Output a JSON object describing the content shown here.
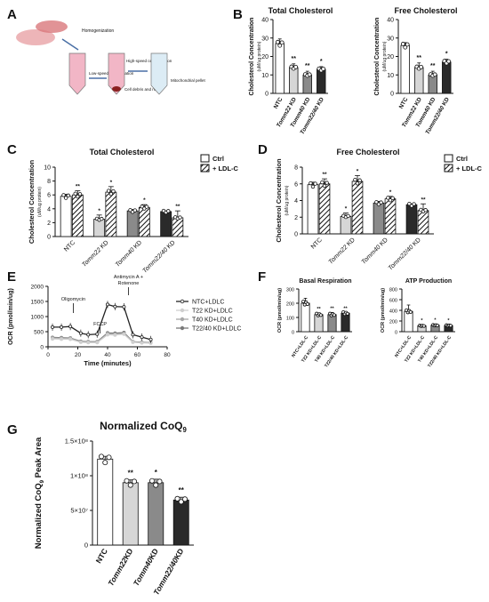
{
  "panels": {
    "A": "A",
    "B": "B",
    "C": "C",
    "D": "D",
    "E": "E",
    "F": "F",
    "G": "G"
  },
  "schematic": {
    "homogenization": "Homogenization",
    "low_speed": "Low-speed centrifugation",
    "high_speed": "High-speed centrifugation",
    "debris": "Cell debris and nuclei",
    "mito": "Mitochondrial pellet"
  },
  "groups_kd": [
    "NTC",
    "Tomm22 KD",
    "Tomm40 KD",
    "Tomm22/40 KD"
  ],
  "groups_g": [
    "NTC",
    "Tomm22KD",
    "Tomm40KD",
    "Tomm22/40KD"
  ],
  "groups_f": [
    "NTC+LDL-C",
    "T22 KD+LDL-C",
    "T40 KD+LDL-C",
    "T22/40 KD+LDL-C"
  ],
  "legend_ldl": {
    "ctrl": "Ctrl",
    "ldl": "+ LDL-C"
  },
  "legend_e": [
    "NTC+LDLC",
    "T22 KD+LDLC",
    "T40 KD+LDLC",
    "T22/40 KD+LDLC"
  ],
  "annotations_e": {
    "oligo": "Oligomycin",
    "fccp": "FCCP",
    "aa1": "Antimycin A +",
    "aa2": "Rotenone"
  },
  "colors": {
    "ntc": "#ffffff",
    "t22": "#d6d6d6",
    "t40": "#8a8a8a",
    "t2240": "#2a2a2a",
    "line_ntc": "#222222",
    "line_t22": "#cfcfcf",
    "line_t40": "#a8a8a8",
    "line_t2240": "#7a7a7a"
  },
  "chart_data": [
    {
      "panel": "B-left",
      "type": "bar",
      "title": "Total Cholesterol",
      "ylabel": "Cholesterol Concentration",
      "yunit": "(uM/ug protein)",
      "categories": [
        "NTC",
        "Tomm22 KD",
        "Tomm40 KD",
        "Tomm22/40 KD"
      ],
      "values": [
        27,
        14,
        10,
        13
      ],
      "errors": [
        2.5,
        2,
        2,
        1.5
      ],
      "significance": [
        "",
        "**",
        "**",
        "*"
      ],
      "ylim": [
        0,
        40
      ],
      "yticks": [
        0,
        10,
        20,
        30,
        40
      ]
    },
    {
      "panel": "B-right",
      "type": "bar",
      "title": "Free Cholesterol",
      "ylabel": "Cholesterol Concentration",
      "yunit": "(uM/ug protein)",
      "categories": [
        "NTC",
        "Tomm22 KD",
        "Tomm40 KD",
        "Tomm22/40 KD"
      ],
      "values": [
        26,
        14,
        10,
        17
      ],
      "errors": [
        1.5,
        2.5,
        2,
        1.5
      ],
      "significance": [
        "",
        "**",
        "**",
        "*"
      ],
      "ylim": [
        0,
        40
      ],
      "yticks": [
        0,
        10,
        20,
        30,
        40
      ]
    },
    {
      "panel": "C",
      "type": "bar",
      "title": "Total Cholesterol",
      "ylabel": "Cholesterol Concentration",
      "yunit": "(uM/ug protein)",
      "categories": [
        "NTC",
        "Tomm22 KD",
        "Tomm40 KD",
        "Tomm22/40 KD"
      ],
      "series": [
        {
          "name": "Ctrl",
          "values": [
            5.8,
            2.5,
            3.7,
            3.6
          ],
          "errors": [
            0.3,
            0.6,
            0.2,
            0.1
          ]
        },
        {
          "name": "+ LDL-C",
          "values": [
            6,
            6.4,
            4.2,
            2.7
          ],
          "errors": [
            0.6,
            0.8,
            0.4,
            1.0
          ]
        }
      ],
      "significance": [
        "",
        "**",
        "*",
        "*",
        "",
        "*",
        "",
        "**"
      ],
      "ylim": [
        0,
        10
      ],
      "yticks": [
        0,
        2,
        4,
        6,
        8,
        10
      ]
    },
    {
      "panel": "D",
      "type": "bar",
      "title": "Free Cholesterol",
      "ylabel": "Cholesterol Concentration",
      "yunit": "(uM/ug protein)",
      "categories": [
        "NTC",
        "Tomm22 KD",
        "Tomm40 KD",
        "Tomm22/40 KD"
      ],
      "series": [
        {
          "name": "Ctrl",
          "values": [
            5.9,
            2.1,
            3.7,
            3.5
          ],
          "errors": [
            0.3,
            0.4,
            0.2,
            0.1
          ]
        },
        {
          "name": "+ LDL-C",
          "values": [
            6,
            6.3,
            4.2,
            2.8
          ],
          "errors": [
            0.6,
            0.7,
            0.3,
            0.8
          ]
        }
      ],
      "significance": [
        "",
        "**",
        "*",
        "*",
        "",
        "*",
        "",
        "**"
      ],
      "ylim": [
        0,
        8
      ],
      "yticks": [
        0,
        2,
        4,
        6,
        8
      ]
    },
    {
      "panel": "E",
      "type": "line",
      "xlabel": "Time (minutes)",
      "ylabel": "OCR (pmol/min/ug)",
      "x": [
        3,
        9,
        15,
        22,
        27,
        33,
        40,
        45,
        51,
        57,
        63,
        69
      ],
      "series": [
        {
          "name": "NTC+LDLC",
          "values": [
            650,
            650,
            670,
            450,
            400,
            420,
            1400,
            1330,
            1320,
            400,
            320,
            240
          ]
        },
        {
          "name": "T22 KD+LDLC",
          "values": [
            260,
            255,
            250,
            150,
            140,
            140,
            400,
            390,
            420,
            150,
            130,
            120
          ]
        },
        {
          "name": "T40 KD+LDLC",
          "values": [
            290,
            280,
            275,
            160,
            150,
            150,
            430,
            410,
            430,
            160,
            140,
            130
          ]
        },
        {
          "name": "T22/40 KD+LDLC",
          "values": [
            310,
            300,
            290,
            180,
            170,
            170,
            460,
            450,
            470,
            170,
            150,
            140
          ]
        }
      ],
      "ylim": [
        0,
        2000
      ],
      "yticks": [
        0,
        500,
        1000,
        1500,
        2000
      ],
      "xlim": [
        0,
        80
      ],
      "xticks": [
        0,
        20,
        40,
        60,
        80
      ]
    },
    {
      "panel": "F-left",
      "type": "bar",
      "title": "Basal Respiration",
      "ylabel": "OCR (pmol/min/ug)",
      "categories": [
        "NTC+LDL-C",
        "T22 KD+LDL-C",
        "T40 KD+LDL-C",
        "T22/40 KD+LDL-C"
      ],
      "values": [
        200,
        120,
        120,
        130
      ],
      "errors": [
        35,
        10,
        15,
        5
      ],
      "significance": [
        "",
        "**",
        "**",
        "**"
      ],
      "ylim": [
        0,
        300
      ],
      "yticks": [
        0,
        100,
        200,
        300
      ]
    },
    {
      "panel": "F-right",
      "type": "bar",
      "title": "ATP Production",
      "ylabel": "OCR (pmol/min/ug)",
      "categories": [
        "NTC+LDL-C",
        "T22 KD+LDL-C",
        "T40 KD+LDL-C",
        "T22/40 KD+LDL-C"
      ],
      "values": [
        380,
        110,
        120,
        115
      ],
      "errors": [
        120,
        20,
        20,
        15
      ],
      "significance": [
        "",
        "*",
        "*",
        "*"
      ],
      "ylim": [
        0,
        800
      ],
      "yticks": [
        0,
        200,
        400,
        600,
        800
      ]
    },
    {
      "panel": "G",
      "type": "bar",
      "title": "Normalized CoQ",
      "title_sub": "9",
      "ylabel": "Normalized CoQ",
      "ylabel_sub": "9",
      "ylabel_tail": " Peak Area",
      "categories": [
        "NTC",
        "Tomm22KD",
        "Tomm40KD",
        "Tomm22/40KD"
      ],
      "values": [
        124000000,
        90000000,
        90000000,
        65000000
      ],
      "errors": [
        4000000,
        4000000,
        5000000,
        4000000
      ],
      "significance": [
        "",
        "**",
        "*",
        "**"
      ],
      "ylim": [
        0,
        150000000
      ],
      "yticks": [
        0,
        50000000,
        100000000,
        150000000
      ],
      "ytick_labels": [
        "0",
        "5×10⁷",
        "1×10⁸",
        "1.5×10⁸"
      ]
    }
  ]
}
